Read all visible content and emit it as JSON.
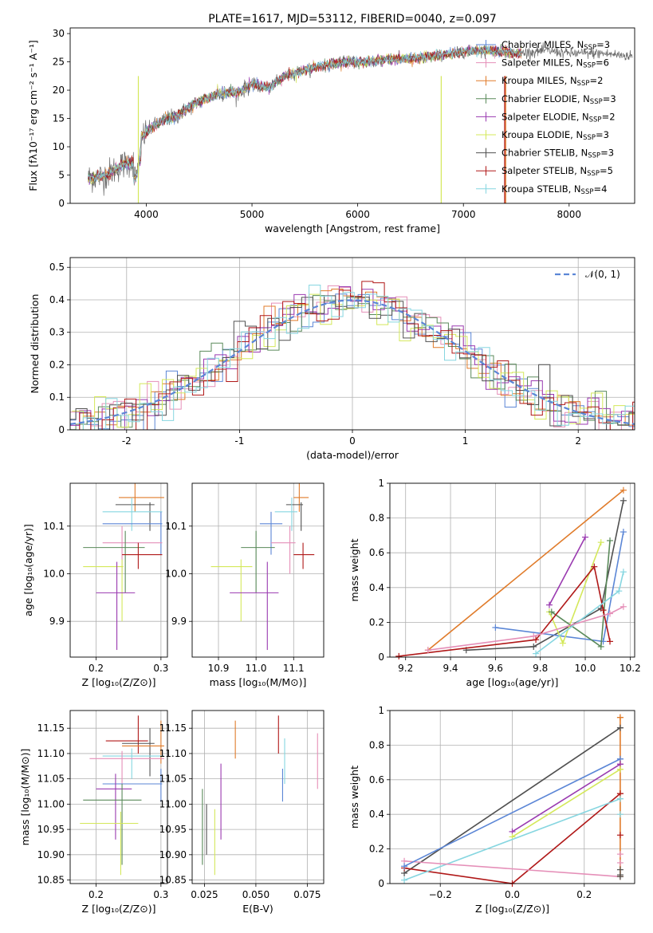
{
  "colors": {
    "Chabrier MILES": "#5b86d6",
    "Salpeter MILES": "#e58fb8",
    "Kroupa MILES": "#e07b2a",
    "Chabrier ELODIE": "#5a8a5a",
    "Salpeter ELODIE": "#9a3ab0",
    "Kroupa ELODIE": "#d4e85a",
    "Chabrier STELIB": "#505050",
    "Salpeter STELIB": "#b01818",
    "Kroupa STELIB": "#86d6e0"
  },
  "chart_data": [
    {
      "id": "spectrum",
      "type": "line",
      "title": "PLATE=1617, MJD=53112, FIBERID=0040, z=0.097",
      "xlabel": "wavelength [Angstrom, rest frame]",
      "ylabel": "Flux [fλ10⁻¹⁷ erg cm⁻² s⁻¹ A⁻¹]",
      "xlim": [
        3280,
        8620
      ],
      "ylim": [
        0,
        31
      ],
      "xticks": [
        4000,
        5000,
        6000,
        7000,
        8000
      ],
      "yticks": [
        0,
        5,
        10,
        15,
        20,
        25,
        30
      ],
      "continuum": [
        [
          3450,
          4.5
        ],
        [
          3600,
          4.8
        ],
        [
          3700,
          6.0
        ],
        [
          3800,
          7.0
        ],
        [
          3900,
          7.5
        ],
        [
          3950,
          11.5
        ],
        [
          4000,
          12.5
        ],
        [
          4100,
          14.0
        ],
        [
          4200,
          15.0
        ],
        [
          4300,
          15.5
        ],
        [
          4400,
          17.0
        ],
        [
          4500,
          18.0
        ],
        [
          4700,
          19.5
        ],
        [
          4860,
          19.5
        ],
        [
          5000,
          21.0
        ],
        [
          5170,
          20.5
        ],
        [
          5300,
          22.5
        ],
        [
          5500,
          23.5
        ],
        [
          5700,
          24.5
        ],
        [
          5900,
          25.0
        ],
        [
          6100,
          25.0
        ],
        [
          6300,
          25.5
        ],
        [
          6500,
          25.5
        ],
        [
          6700,
          26.0
        ],
        [
          6900,
          26.5
        ],
        [
          7100,
          27.0
        ],
        [
          7300,
          27.0
        ],
        [
          7500,
          26.5
        ],
        [
          7800,
          27.0
        ],
        [
          8000,
          26.5
        ],
        [
          8300,
          26.5
        ],
        [
          8600,
          26.0
        ]
      ],
      "legend_position": "upper right",
      "series": [
        {
          "name": "Chabrier MILES, N",
          "sub": "SSP",
          "suffix": "=3"
        },
        {
          "name": "Salpeter MILES, N",
          "sub": "SSP",
          "suffix": "=6"
        },
        {
          "name": "Kroupa MILES, N",
          "sub": "SSP",
          "suffix": "=2"
        },
        {
          "name": "Chabrier ELODIE, N",
          "sub": "SSP",
          "suffix": "=3"
        },
        {
          "name": "Salpeter ELODIE, N",
          "sub": "SSP",
          "suffix": "=2"
        },
        {
          "name": "Kroupa ELODIE, N",
          "sub": "SSP",
          "suffix": "=3"
        },
        {
          "name": "Chabrier STELIB, N",
          "sub": "SSP",
          "suffix": "=3"
        },
        {
          "name": "Salpeter STELIB, N",
          "sub": "SSP",
          "suffix": "=5"
        },
        {
          "name": "Kroupa STELIB, N",
          "sub": "SSP",
          "suffix": "=4"
        }
      ]
    },
    {
      "id": "residuals",
      "type": "histogram",
      "xlabel": "(data-model)/error",
      "ylabel": "Normed distribution",
      "xlim": [
        -2.5,
        2.5
      ],
      "ylim": [
        0,
        0.53
      ],
      "xticks": [
        -2,
        -1,
        0,
        1,
        2
      ],
      "yticks": [
        0.0,
        0.1,
        0.2,
        0.3,
        0.4,
        0.5
      ],
      "bin_width": 0.1,
      "grid": true,
      "reference_curve": "N(0,1)",
      "legend": "𝒩(0, 1)",
      "legend_position": "upper right"
    },
    {
      "id": "age_vs_Z",
      "type": "errorbar",
      "xlabel": "Z [log₁₀(Z/Z⊙)]",
      "ylabel": "age  [log₁₀(age/yr)]",
      "xlim": [
        0.16,
        0.31
      ],
      "ylim": [
        9.825,
        10.19
      ],
      "xticks": [
        0.2,
        0.3
      ],
      "xtick_labels": [
        "0.2",
        "0.3"
      ],
      "yticks": [
        9.9,
        10.0,
        10.1
      ],
      "yticks_labels": [
        "9.9",
        "10.0",
        "10.1"
      ],
      "grid": true,
      "points": [
        {
          "model": "Kroupa MILES",
          "x": 0.26,
          "xerr": [
            0.235,
            0.305
          ],
          "y": 10.16,
          "yerr": [
            10.13,
            10.19
          ]
        },
        {
          "model": "Chabrier STELIB",
          "x": 0.283,
          "xerr": [
            0.23,
            0.29
          ],
          "y": 10.145,
          "yerr": [
            10.09,
            10.15
          ]
        },
        {
          "model": "Kroupa STELIB",
          "x": 0.255,
          "xerr": [
            0.21,
            0.302
          ],
          "y": 10.13,
          "yerr": [
            10.09,
            10.16
          ]
        },
        {
          "model": "Chabrier MILES",
          "x": 0.3,
          "xerr": [
            0.21,
            0.302
          ],
          "y": 10.105,
          "yerr": [
            10.04,
            10.13
          ]
        },
        {
          "model": "Salpeter MILES",
          "x": 0.24,
          "xerr": [
            0.21,
            0.302
          ],
          "y": 10.065,
          "yerr": [
            10.0,
            10.1
          ]
        },
        {
          "model": "Chabrier ELODIE",
          "x": 0.245,
          "xerr": [
            0.18,
            0.275
          ],
          "y": 10.055,
          "yerr": [
            9.96,
            10.09
          ]
        },
        {
          "model": "Salpeter STELIB",
          "x": 0.265,
          "xerr": [
            0.24,
            0.302
          ],
          "y": 10.04,
          "yerr": [
            10.01,
            10.065
          ]
        },
        {
          "model": "Kroupa ELODIE",
          "x": 0.24,
          "xerr": [
            0.18,
            0.242
          ],
          "y": 10.015,
          "yerr": [
            9.9,
            10.03
          ]
        },
        {
          "model": "Salpeter ELODIE",
          "x": 0.232,
          "xerr": [
            0.2,
            0.26
          ],
          "y": 9.96,
          "yerr": [
            9.84,
            10.025
          ]
        }
      ]
    },
    {
      "id": "age_vs_mass",
      "type": "errorbar",
      "xlabel": "mass [log₁₀(M/M⊙)]",
      "xlim": [
        10.83,
        11.18
      ],
      "ylim": [
        9.825,
        10.19
      ],
      "xticks": [
        10.9,
        11.0,
        11.1
      ],
      "xtick_labels": [
        "10.9",
        "11.0",
        "11.1"
      ],
      "yticks": [
        9.9,
        10.0,
        10.1
      ],
      "yticks_labels": [
        "9.9",
        "10.0",
        "10.1"
      ],
      "grid": true,
      "points": [
        {
          "model": "Kroupa MILES",
          "x": 11.115,
          "xerr": [
            11.1,
            11.14
          ],
          "y": 10.16,
          "yerr": [
            10.13,
            10.19
          ]
        },
        {
          "model": "Chabrier STELIB",
          "x": 11.12,
          "xerr": [
            11.08,
            11.125
          ],
          "y": 10.145,
          "yerr": [
            10.09,
            10.15
          ]
        },
        {
          "model": "Kroupa STELIB",
          "x": 11.095,
          "xerr": [
            11.05,
            11.11
          ],
          "y": 10.13,
          "yerr": [
            10.09,
            10.16
          ]
        },
        {
          "model": "Chabrier MILES",
          "x": 11.04,
          "xerr": [
            11.01,
            11.07
          ],
          "y": 10.105,
          "yerr": [
            10.04,
            10.13
          ]
        },
        {
          "model": "Salpeter MILES",
          "x": 11.09,
          "xerr": [
            11.04,
            11.105
          ],
          "y": 10.065,
          "yerr": [
            10.0,
            10.1
          ]
        },
        {
          "model": "Chabrier ELODIE",
          "x": 11.0,
          "xerr": [
            10.96,
            11.05
          ],
          "y": 10.055,
          "yerr": [
            9.96,
            10.09
          ]
        },
        {
          "model": "Salpeter STELIB",
          "x": 11.125,
          "xerr": [
            11.1,
            11.155
          ],
          "y": 10.04,
          "yerr": [
            10.01,
            10.065
          ]
        },
        {
          "model": "Kroupa ELODIE",
          "x": 10.96,
          "xerr": [
            10.88,
            10.99
          ],
          "y": 10.015,
          "yerr": [
            9.9,
            10.03
          ]
        },
        {
          "model": "Salpeter ELODIE",
          "x": 11.03,
          "xerr": [
            10.93,
            11.06
          ],
          "y": 9.96,
          "yerr": [
            9.84,
            10.025
          ]
        }
      ]
    },
    {
      "id": "mass_weight_vs_age",
      "type": "line",
      "xlabel": "age  [log₁₀(age/yr)]",
      "ylabel": "mass weight",
      "xlim": [
        9.13,
        10.22
      ],
      "ylim": [
        0,
        1.0
      ],
      "xticks": [
        9.2,
        9.4,
        9.6,
        9.8,
        10.0,
        10.2
      ],
      "xtick_labels": [
        "9.2",
        "9.4",
        "9.6",
        "9.8",
        "10.0",
        "10.2"
      ],
      "yticks": [
        0.0,
        0.2,
        0.4,
        0.6,
        0.8,
        1.0
      ],
      "grid": true,
      "series": [
        {
          "model": "Kroupa MILES",
          "x": [
            9.3,
            10.17
          ],
          "y": [
            0.04,
            0.96
          ]
        },
        {
          "model": "Chabrier STELIB",
          "x": [
            9.47,
            9.77,
            10.07,
            10.17
          ],
          "y": [
            0.04,
            0.06,
            0.28,
            0.9
          ]
        },
        {
          "model": "Chabrier MILES",
          "x": [
            9.6,
            10.08,
            10.17
          ],
          "y": [
            0.17,
            0.09,
            0.72
          ]
        },
        {
          "model": "Salpeter ELODIE",
          "x": [
            9.84,
            10.0
          ],
          "y": [
            0.3,
            0.69
          ]
        },
        {
          "model": "Kroupa ELODIE",
          "x": [
            9.84,
            9.9,
            10.07
          ],
          "y": [
            0.26,
            0.08,
            0.66
          ]
        },
        {
          "model": "Chabrier ELODIE",
          "x": [
            9.85,
            10.07,
            10.11
          ],
          "y": [
            0.26,
            0.06,
            0.67
          ]
        },
        {
          "model": "Salpeter STELIB",
          "x": [
            9.17,
            9.78,
            10.04,
            10.08,
            10.11
          ],
          "y": [
            0.005,
            0.1,
            0.52,
            0.27,
            0.09
          ]
        },
        {
          "model": "Kroupa STELIB",
          "x": [
            9.78,
            10.15,
            10.17
          ],
          "y": [
            0.02,
            0.38,
            0.49
          ]
        },
        {
          "model": "Salpeter MILES",
          "x": [
            9.3,
            9.77,
            10.11,
            10.17
          ],
          "y": [
            0.04,
            0.12,
            0.25,
            0.29
          ]
        }
      ]
    },
    {
      "id": "mass_vs_Z",
      "type": "errorbar",
      "xlabel": "Z [log₁₀(Z/Z⊙)]",
      "ylabel": "mass [log₁₀(M/M⊙)]",
      "xlim": [
        0.16,
        0.31
      ],
      "ylim": [
        10.843,
        11.185
      ],
      "xticks": [
        0.2,
        0.3
      ],
      "xtick_labels": [
        "0.2",
        "0.3"
      ],
      "yticks": [
        10.85,
        10.9,
        10.95,
        11.0,
        11.05,
        11.1,
        11.15
      ],
      "yticks_labels": [
        "10.85",
        "10.90",
        "10.95",
        "11.00",
        "11.05",
        "11.10",
        "11.15"
      ],
      "grid": true,
      "points": [
        {
          "model": "Salpeter STELIB",
          "x": 0.265,
          "xerr": [
            0.215,
            0.28
          ],
          "y": 11.125,
          "yerr": [
            11.1,
            11.175
          ]
        },
        {
          "model": "Chabrier STELIB",
          "x": 0.283,
          "xerr": [
            0.24,
            0.29
          ],
          "y": 11.12,
          "yerr": [
            11.055,
            11.15
          ]
        },
        {
          "model": "Kroupa MILES",
          "x": 0.3,
          "xerr": [
            0.24,
            0.305
          ],
          "y": 11.115,
          "yerr": [
            11.08,
            11.165
          ]
        },
        {
          "model": "Kroupa STELIB",
          "x": 0.255,
          "xerr": [
            0.21,
            0.305
          ],
          "y": 11.095,
          "yerr": [
            11.05,
            11.11
          ]
        },
        {
          "model": "Salpeter MILES",
          "x": 0.24,
          "xerr": [
            0.19,
            0.305
          ],
          "y": 11.09,
          "yerr": [
            11.04,
            11.105
          ]
        },
        {
          "model": "Chabrier MILES",
          "x": 0.3,
          "xerr": [
            0.21,
            0.302
          ],
          "y": 11.04,
          "yerr": [
            11.005,
            11.07
          ]
        },
        {
          "model": "Salpeter ELODIE",
          "x": 0.23,
          "xerr": [
            0.2,
            0.255
          ],
          "y": 11.03,
          "yerr": [
            10.93,
            11.06
          ]
        },
        {
          "model": "Chabrier ELODIE",
          "x": 0.24,
          "xerr": [
            0.18,
            0.27
          ],
          "y": 11.008,
          "yerr": [
            10.88,
            11.04
          ]
        },
        {
          "model": "Kroupa ELODIE",
          "x": 0.238,
          "xerr": [
            0.175,
            0.265
          ],
          "y": 10.962,
          "yerr": [
            10.86,
            10.985
          ]
        }
      ]
    },
    {
      "id": "mass_vs_ebv",
      "type": "errorbar",
      "xlabel": "E(B-V)",
      "xlim": [
        0.019,
        0.083
      ],
      "ylim": [
        10.843,
        11.185
      ],
      "xticks": [
        0.025,
        0.05,
        0.075
      ],
      "xtick_labels": [
        "0.025",
        "0.050",
        "0.075"
      ],
      "yticks": [
        10.85,
        10.9,
        10.95,
        11.0,
        11.05,
        11.1,
        11.15
      ],
      "yticks_labels": [
        "10.85",
        "10.90",
        "10.95",
        "11.00",
        "11.05",
        "11.10",
        "11.15"
      ],
      "grid": true,
      "points": [
        {
          "model": "Kroupa MILES",
          "x": 0.04,
          "y": 11.13,
          "yerr": [
            11.09,
            11.165
          ]
        },
        {
          "model": "Salpeter STELIB",
          "x": 0.061,
          "y": 11.14,
          "yerr": [
            11.1,
            11.175
          ]
        },
        {
          "model": "Kroupa STELIB",
          "x": 0.064,
          "y": 11.09,
          "yerr": [
            11.04,
            11.13
          ]
        },
        {
          "model": "Chabrier MILES",
          "x": 0.063,
          "y": 11.04,
          "yerr": [
            11.005,
            11.07
          ]
        },
        {
          "model": "Salpeter MILES",
          "x": 0.08,
          "y": 11.09,
          "yerr": [
            11.03,
            11.14
          ]
        },
        {
          "model": "Salpeter ELODIE",
          "x": 0.033,
          "y": 11.03,
          "yerr": [
            10.93,
            11.08
          ]
        },
        {
          "model": "Chabrier ELODIE",
          "x": 0.024,
          "y": 10.95,
          "yerr": [
            10.88,
            11.03
          ]
        },
        {
          "model": "Kroupa ELODIE",
          "x": 0.03,
          "y": 10.93,
          "yerr": [
            10.86,
            10.99
          ]
        },
        {
          "model": "Chabrier STELIB",
          "x": 0.026,
          "y": 10.96,
          "yerr": [
            10.9,
            11.0
          ]
        }
      ]
    },
    {
      "id": "mass_weight_vs_Z",
      "type": "line",
      "xlabel": "Z [log₁₀(Z/Z⊙)]",
      "ylabel": "mass weight",
      "xlim": [
        -0.34,
        0.34
      ],
      "ylim": [
        0,
        1.0
      ],
      "xticks": [
        -0.2,
        0.0,
        0.2
      ],
      "xtick_labels": [
        "−0.2",
        "0.0",
        "0.2"
      ],
      "yticks": [
        0.0,
        0.2,
        0.4,
        0.6,
        0.8,
        1.0
      ],
      "grid": true,
      "series": [
        {
          "model": "Chabrier STELIB",
          "x": [
            -0.3,
            0.3
          ],
          "y": [
            0.06,
            0.9
          ]
        },
        {
          "model": "Salpeter ELODIE",
          "x": [
            0.0,
            0.3
          ],
          "y": [
            0.3,
            0.69
          ]
        },
        {
          "model": "Kroupa ELODIE",
          "x": [
            0.0,
            0.3
          ],
          "y": [
            0.27,
            0.66
          ]
        },
        {
          "model": "Salpeter STELIB",
          "x": [
            -0.3,
            0.0,
            0.3
          ],
          "y": [
            0.09,
            0.0,
            0.52
          ]
        },
        {
          "model": "Kroupa STELIB",
          "x": [
            -0.3,
            0.3
          ],
          "y": [
            0.02,
            0.49
          ]
        },
        {
          "model": "Salpeter MILES",
          "x": [
            -0.3,
            0.3
          ],
          "y": [
            0.13,
            0.04
          ]
        },
        {
          "model": "Chabrier MILES",
          "x": [
            -0.3,
            0.3
          ],
          "y": [
            0.1,
            0.72
          ]
        },
        {
          "model": "Kroupa MILES",
          "x": [
            0.3,
            0.3
          ],
          "y": [
            0.04,
            0.96
          ]
        }
      ],
      "stack_x": 0.3,
      "stack_values": [
        0.96,
        0.9,
        0.72,
        0.69,
        0.66,
        0.52,
        0.49,
        0.4,
        0.28,
        0.17,
        0.12,
        0.08,
        0.05,
        0.04
      ]
    }
  ]
}
